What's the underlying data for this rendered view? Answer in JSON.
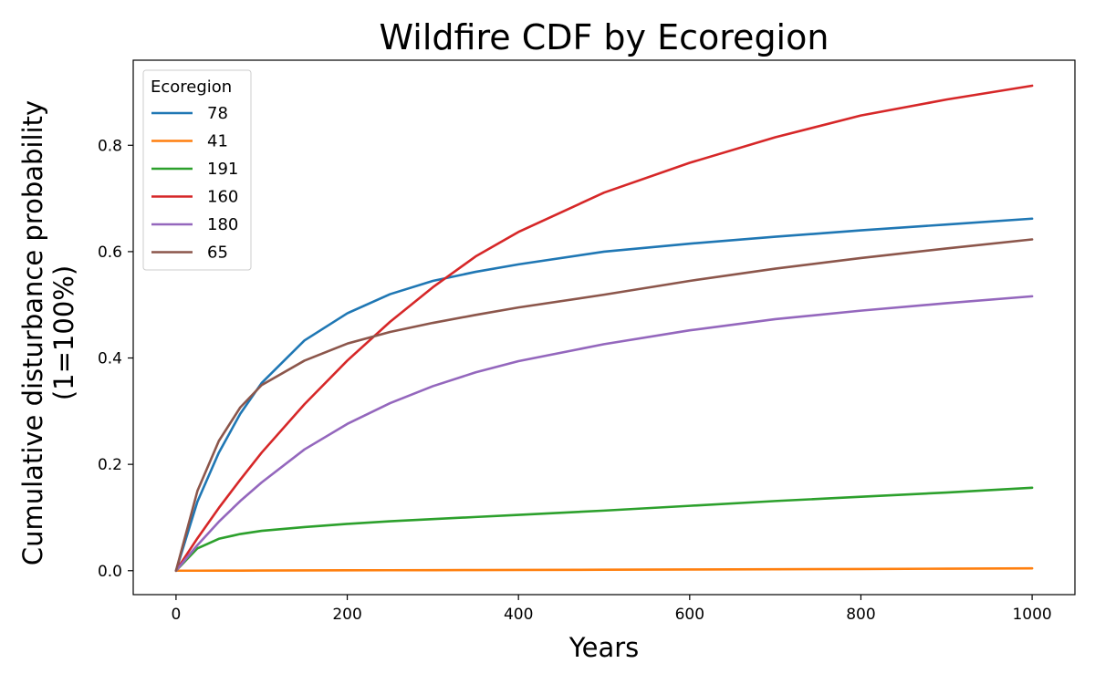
{
  "chart_data": {
    "type": "line",
    "title": "Wildfire CDF by Ecoregion",
    "xlabel": "Years",
    "ylabel_line1": "Cumulative disturbance probability",
    "ylabel_line2": "(1=100%)",
    "xlim": [
      -50,
      1050
    ],
    "ylim": [
      -0.045,
      0.96
    ],
    "xticks": [
      0,
      200,
      400,
      600,
      800,
      1000
    ],
    "yticks": [
      0.0,
      0.2,
      0.4,
      0.6,
      0.8
    ],
    "xtick_labels": [
      "0",
      "200",
      "400",
      "600",
      "800",
      "1000"
    ],
    "ytick_labels": [
      "0.0",
      "0.2",
      "0.4",
      "0.6",
      "0.8"
    ],
    "grid": false,
    "legend": {
      "title": "Ecoregion",
      "placement": "top-left"
    },
    "x": [
      0,
      25,
      50,
      75,
      100,
      150,
      200,
      250,
      300,
      350,
      400,
      500,
      600,
      700,
      800,
      900,
      1000
    ],
    "series": [
      {
        "name": "78",
        "color": "#1f77b4",
        "values": [
          0.0,
          0.13,
          0.222,
          0.295,
          0.353,
          0.433,
          0.484,
          0.52,
          0.545,
          0.562,
          0.576,
          0.6,
          0.615,
          0.628,
          0.64,
          0.651,
          0.662
        ]
      },
      {
        "name": "41",
        "color": "#ff7f0e",
        "values": [
          0.0,
          0.0,
          0.0001,
          0.0002,
          0.0003,
          0.0005,
          0.0007,
          0.0009,
          0.001,
          0.0012,
          0.0014,
          0.0018,
          0.0022,
          0.0027,
          0.0032,
          0.0038,
          0.0045
        ]
      },
      {
        "name": "191",
        "color": "#2ca02c",
        "values": [
          0.0,
          0.042,
          0.06,
          0.069,
          0.075,
          0.082,
          0.088,
          0.093,
          0.097,
          0.101,
          0.105,
          0.113,
          0.122,
          0.131,
          0.139,
          0.147,
          0.156
        ]
      },
      {
        "name": "160",
        "color": "#d62728",
        "values": [
          0.0,
          0.061,
          0.118,
          0.171,
          0.222,
          0.313,
          0.395,
          0.468,
          0.533,
          0.591,
          0.637,
          0.711,
          0.767,
          0.815,
          0.856,
          0.886,
          0.912
        ]
      },
      {
        "name": "180",
        "color": "#9467bd",
        "values": [
          0.0,
          0.048,
          0.092,
          0.131,
          0.166,
          0.228,
          0.276,
          0.315,
          0.347,
          0.373,
          0.394,
          0.426,
          0.452,
          0.473,
          0.489,
          0.503,
          0.516
        ]
      },
      {
        "name": "65",
        "color": "#8c564b",
        "values": [
          0.0,
          0.15,
          0.244,
          0.307,
          0.349,
          0.395,
          0.427,
          0.449,
          0.466,
          0.481,
          0.495,
          0.519,
          0.545,
          0.568,
          0.588,
          0.606,
          0.623
        ]
      }
    ]
  }
}
